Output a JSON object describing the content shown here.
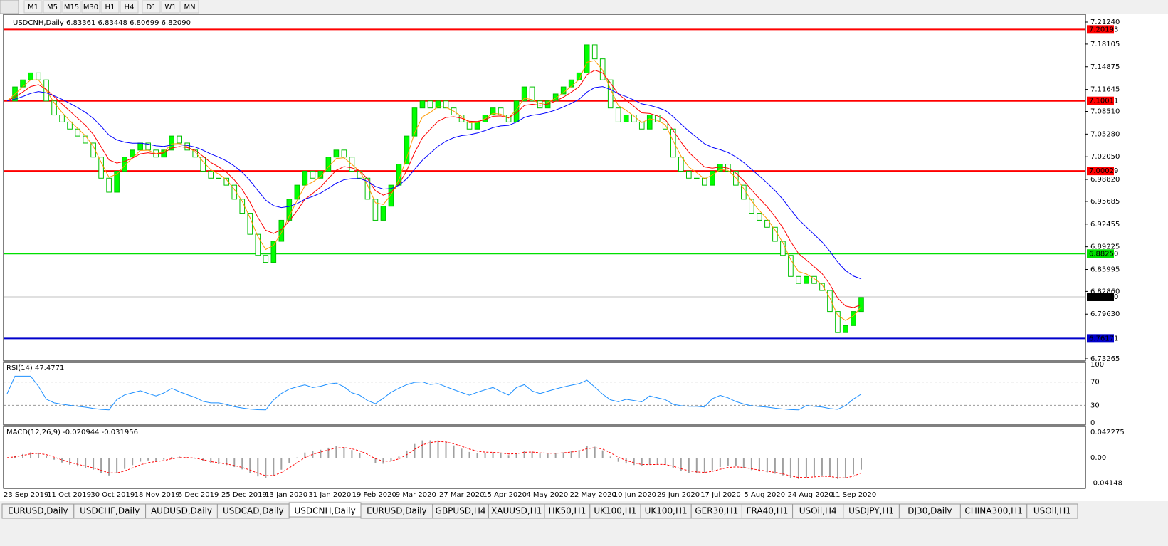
{
  "toolbar": {
    "timeframes": [
      "M1",
      "M5",
      "M15",
      "M30",
      "H1",
      "H4",
      "D1",
      "W1",
      "MN"
    ]
  },
  "main": {
    "header": "USDCNH,Daily  6.83361 6.83448 6.80699 6.82090",
    "ylim": [
      6.73265,
      7.2124
    ],
    "yticks": [
      {
        "value": 7.2124,
        "label": "7.21240"
      },
      {
        "value": 7.18105,
        "label": "7.18105"
      },
      {
        "value": 7.14875,
        "label": "7.14875"
      },
      {
        "value": 7.11645,
        "label": "7.11645"
      },
      {
        "value": 7.0851,
        "label": "7.08510"
      },
      {
        "value": 7.0528,
        "label": "7.05280"
      },
      {
        "value": 7.0205,
        "label": "7.02050"
      },
      {
        "value": 6.9882,
        "label": "6.98820"
      },
      {
        "value": 6.95685,
        "label": "6.95685"
      },
      {
        "value": 6.92455,
        "label": "6.92455"
      },
      {
        "value": 6.89225,
        "label": "6.89225"
      },
      {
        "value": 6.85995,
        "label": "6.85995"
      },
      {
        "value": 6.8286,
        "label": "6.82860"
      },
      {
        "value": 6.7963,
        "label": "6.79630"
      },
      {
        "value": 6.73265,
        "label": "6.73265"
      }
    ],
    "levels": [
      {
        "value": 7.20193,
        "label": "7.20193",
        "color": "#ff0000"
      },
      {
        "value": 7.10011,
        "label": "7.10011",
        "color": "#ff0000"
      },
      {
        "value": 7.00029,
        "label": "7.00029",
        "color": "#ff0000"
      },
      {
        "value": 6.8825,
        "label": "6.88250",
        "color": "#00e000"
      },
      {
        "value": 6.76171,
        "label": "6.76171",
        "color": "#0000cc"
      },
      {
        "value": 6.8209,
        "label": "6.82090",
        "color": "#000000"
      }
    ],
    "closes": [
      7.1,
      7.12,
      7.13,
      7.14,
      7.13,
      7.1,
      7.08,
      7.07,
      7.06,
      7.05,
      7.04,
      7.02,
      6.99,
      6.97,
      7.0,
      7.02,
      7.03,
      7.04,
      7.03,
      7.02,
      7.03,
      7.05,
      7.04,
      7.03,
      7.02,
      7.0,
      6.99,
      6.99,
      6.98,
      6.96,
      6.94,
      6.91,
      6.88,
      6.87,
      6.9,
      6.93,
      6.96,
      6.98,
      7.0,
      6.99,
      7.0,
      7.02,
      7.03,
      7.02,
      7.0,
      6.99,
      6.96,
      6.93,
      6.95,
      6.98,
      7.01,
      7.05,
      7.09,
      7.1,
      7.09,
      7.1,
      7.09,
      7.08,
      7.07,
      7.06,
      7.07,
      7.08,
      7.09,
      7.08,
      7.07,
      7.1,
      7.12,
      7.1,
      7.09,
      7.1,
      7.11,
      7.12,
      7.13,
      7.14,
      7.18,
      7.16,
      7.13,
      7.09,
      7.07,
      7.08,
      7.07,
      7.06,
      7.08,
      7.07,
      7.06,
      7.02,
      7.0,
      6.99,
      6.99,
      6.98,
      7.0,
      7.01,
      7.0,
      6.98,
      6.96,
      6.94,
      6.93,
      6.92,
      6.9,
      6.88,
      6.85,
      6.84,
      6.85,
      6.84,
      6.83,
      6.8,
      6.77,
      6.78,
      6.8,
      6.82
    ]
  },
  "rsi": {
    "header": "RSI(14) 47.4771",
    "ylim": [
      0,
      100
    ],
    "yticks": [
      {
        "value": 100,
        "label": "100"
      },
      {
        "value": 70,
        "label": "70"
      },
      {
        "value": 30,
        "label": "30"
      },
      {
        "value": 0,
        "label": "0"
      }
    ]
  },
  "macd": {
    "header": "MACD(12,26,9) -0.020944 -0.031956",
    "ylim": [
      -0.048,
      0.048
    ],
    "yticks": [
      {
        "value": 0.042275,
        "label": "0.042275"
      },
      {
        "value": 0,
        "label": "0.00"
      },
      {
        "value": -0.04148,
        "label": "-0.04148"
      }
    ]
  },
  "dates": [
    "23 Sep 2019",
    "11 Oct 2019",
    "30 Oct 2019",
    "18 Nov 2019",
    "6 Dec 2019",
    "25 Dec 2019",
    "13 Jan 2020",
    "31 Jan 2020",
    "19 Feb 2020",
    "9 Mar 2020",
    "27 Mar 2020",
    "15 Apr 2020",
    "4 May 2020",
    "22 May 2020",
    "10 Jun 2020",
    "29 Jun 2020",
    "17 Jul 2020",
    "5 Aug 2020",
    "24 Aug 2020",
    "11 Sep 2020"
  ],
  "tabs": {
    "items": [
      "EURUSD,Daily",
      "USDCHF,Daily",
      "AUDUSD,Daily",
      "USDCAD,Daily",
      "USDCNH,Daily",
      "EURUSD,Daily",
      "GBPUSD,H4",
      "XAUUSD,H1",
      "HK50,H1",
      "UK100,H1",
      "UK100,H1",
      "GER30,H1",
      "FRA40,H1",
      "USOil,H4",
      "USDJPY,H1",
      "DJ30,Daily",
      "CHINA300,H1",
      "USOil,H1"
    ],
    "active": 4
  }
}
